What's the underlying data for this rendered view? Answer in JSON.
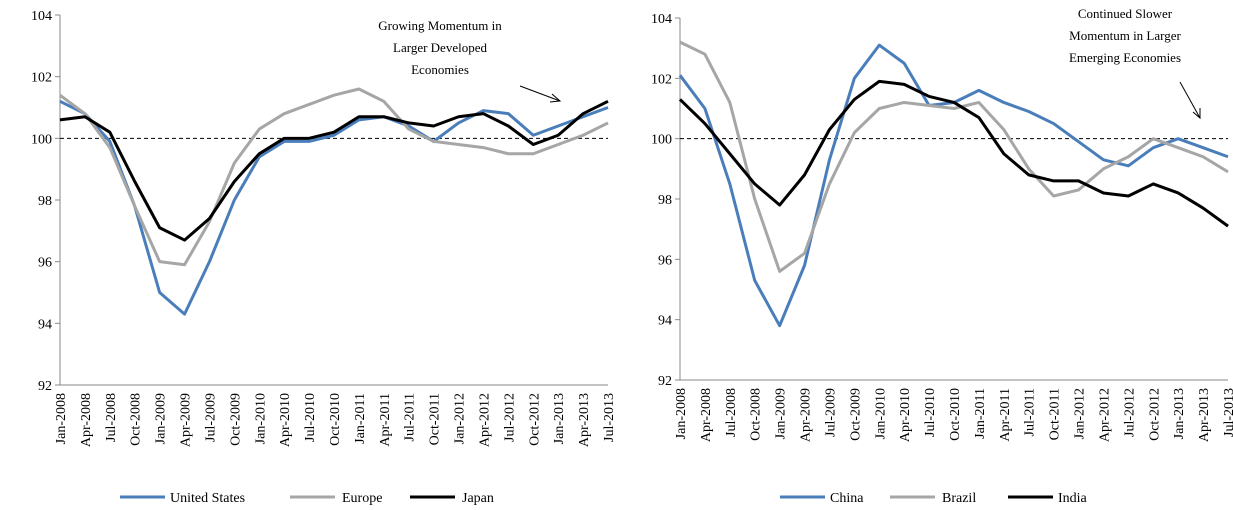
{
  "chart_data": [
    {
      "type": "line",
      "annotation": [
        "Growing Momentum in",
        "Larger Developed",
        "Economies"
      ],
      "categories": [
        "Jan-2008",
        "Apr-2008",
        "Jul-2008",
        "Oct-2008",
        "Jan-2009",
        "Apr-2009",
        "Jul-2009",
        "Oct-2009",
        "Jan-2010",
        "Apr-2010",
        "Jul-2010",
        "Oct-2010",
        "Jan-2011",
        "Apr-2011",
        "Jul-2011",
        "Oct-2011",
        "Jan-2012",
        "Apr-2012",
        "Jul-2012",
        "Oct-2012",
        "Jan-2013",
        "Apr-2013",
        "Jul-2013"
      ],
      "series": [
        {
          "name": "United States",
          "color": "#4a7ebb",
          "values": [
            101.2,
            100.8,
            99.9,
            97.8,
            95.0,
            94.3,
            96.0,
            98.0,
            99.4,
            99.9,
            99.9,
            100.1,
            100.6,
            100.7,
            100.4,
            99.9,
            100.5,
            100.9,
            100.8,
            100.1,
            100.4,
            100.7,
            101.0
          ]
        },
        {
          "name": "Europe",
          "color": "#a6a6a6",
          "values": [
            101.4,
            100.8,
            99.7,
            97.8,
            96.0,
            95.9,
            97.3,
            99.2,
            100.3,
            100.8,
            101.1,
            101.4,
            101.6,
            101.2,
            100.3,
            99.9,
            99.8,
            99.7,
            99.5,
            99.5,
            99.8,
            100.1,
            100.5
          ]
        },
        {
          "name": "Japan",
          "color": "#000000",
          "values": [
            100.6,
            100.7,
            100.2,
            98.6,
            97.1,
            96.7,
            97.4,
            98.6,
            99.5,
            100.0,
            100.0,
            100.2,
            100.7,
            100.7,
            100.5,
            100.4,
            100.7,
            100.8,
            100.4,
            99.8,
            100.1,
            100.8,
            101.2
          ]
        }
      ],
      "reference_line": 100,
      "ylim": [
        92,
        104
      ],
      "yticks": [
        92,
        94,
        96,
        98,
        100,
        102,
        104
      ]
    },
    {
      "type": "line",
      "annotation": [
        "Continued Slower",
        "Momentum in Larger",
        "Emerging  Economies"
      ],
      "categories": [
        "Jan-2008",
        "Apr-2008",
        "Jul-2008",
        "Oct-2008",
        "Jan-2009",
        "Apr-2009",
        "Jul-2009",
        "Oct-2009",
        "Jan-2010",
        "Apr-2010",
        "Jul-2010",
        "Oct-2010",
        "Jan-2011",
        "Apr-2011",
        "Jul-2011",
        "Oct-2011",
        "Jan-2012",
        "Apr-2012",
        "Jul-2012",
        "Oct-2012",
        "Jan-2013",
        "Apr-2013",
        "Jul-2013"
      ],
      "series": [
        {
          "name": "China",
          "color": "#4a7ebb",
          "values": [
            102.1,
            101.0,
            98.5,
            95.3,
            93.8,
            95.8,
            99.3,
            102.0,
            103.1,
            102.5,
            101.1,
            101.2,
            101.6,
            101.2,
            100.9,
            100.5,
            99.9,
            99.3,
            99.1,
            99.7,
            100.0,
            99.7,
            99.4
          ]
        },
        {
          "name": "Brazil",
          "color": "#a6a6a6",
          "values": [
            103.2,
            102.8,
            101.2,
            98.0,
            95.6,
            96.2,
            98.5,
            100.2,
            101.0,
            101.2,
            101.1,
            101.0,
            101.2,
            100.3,
            99.0,
            98.1,
            98.3,
            99.0,
            99.4,
            100.0,
            99.7,
            99.4,
            98.9
          ]
        },
        {
          "name": "India",
          "color": "#000000",
          "values": [
            101.3,
            100.5,
            99.5,
            98.5,
            97.8,
            98.8,
            100.3,
            101.3,
            101.9,
            101.8,
            101.4,
            101.2,
            100.7,
            99.5,
            98.8,
            98.6,
            98.6,
            98.2,
            98.1,
            98.5,
            98.2,
            97.7,
            97.1
          ]
        }
      ],
      "reference_line": 100,
      "ylim": [
        92,
        104
      ],
      "yticks": [
        92,
        94,
        96,
        98,
        100,
        102,
        104
      ]
    }
  ]
}
